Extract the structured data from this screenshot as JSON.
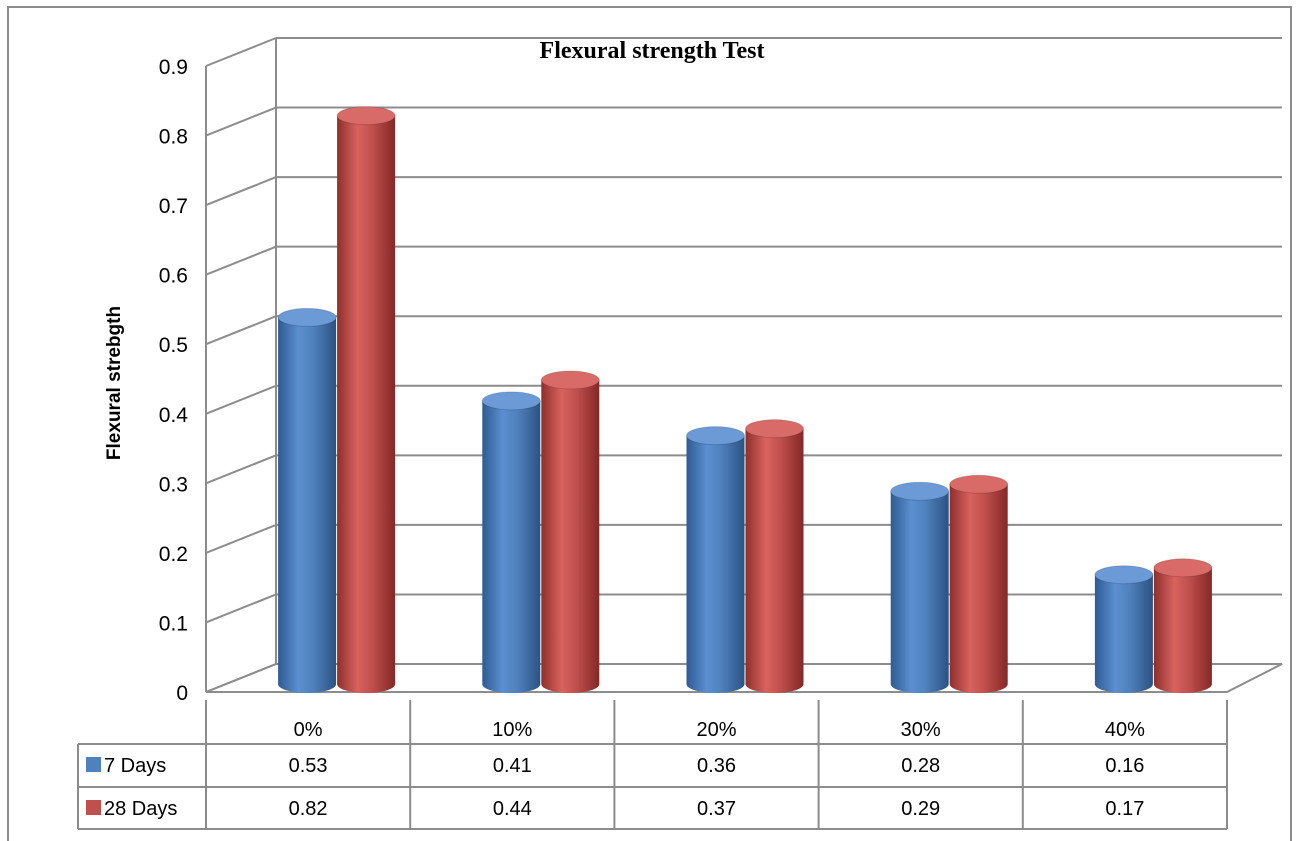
{
  "chart_data": {
    "type": "bar",
    "title": "Flexural strength Test",
    "ylabel": "Flexural strebgth",
    "xlabel": "",
    "categories": [
      "0%",
      "10%",
      "20%",
      "30%",
      "40%"
    ],
    "yticks": [
      "0",
      "0.1",
      "0.2",
      "0.3",
      "0.4",
      "0.5",
      "0.6",
      "0.7",
      "0.8",
      "0.9"
    ],
    "ylim": [
      0,
      0.9
    ],
    "grid": true,
    "legend": "data-table",
    "series": [
      {
        "name": "7 Days",
        "values": [
          0.53,
          0.41,
          0.36,
          0.28,
          0.16
        ],
        "value_labels": [
          "0.53",
          "0.41",
          "0.36",
          "0.28",
          "0.16"
        ],
        "color": "#4f81bd"
      },
      {
        "name": "28 Days",
        "values": [
          0.82,
          0.44,
          0.37,
          0.29,
          0.17
        ],
        "value_labels": [
          "0.82",
          "0.44",
          "0.37",
          "0.29",
          "0.17"
        ],
        "color": "#c0504d"
      }
    ]
  }
}
